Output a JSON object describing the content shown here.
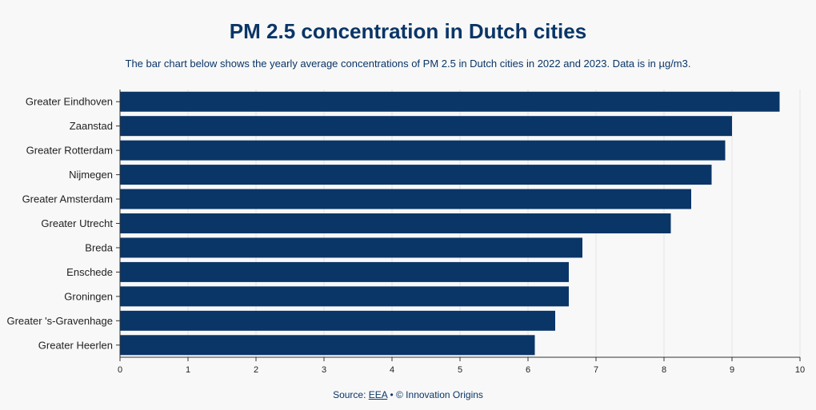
{
  "title": "PM 2.5 concentration in Dutch cities",
  "subtitle": "The bar chart below shows the yearly average concentrations of PM 2.5 in Dutch cities in 2022 and 2023. Data is in µg/m3.",
  "footer": {
    "prefix": "Source: ",
    "link_text": "EEA",
    "suffix": " • © Innovation Origins"
  },
  "chart_data": {
    "type": "bar",
    "orientation": "horizontal",
    "categories": [
      "Greater Eindhoven",
      "Zaanstad",
      "Greater Rotterdam",
      "Nijmegen",
      "Greater Amsterdam",
      "Greater Utrecht",
      "Breda",
      "Enschede",
      "Groningen",
      "Greater 's-Gravenhage",
      "Greater Heerlen"
    ],
    "values": [
      9.7,
      9.0,
      8.9,
      8.7,
      8.4,
      8.1,
      6.8,
      6.6,
      6.6,
      6.4,
      6.1
    ],
    "xlim": [
      0,
      10
    ],
    "xticks": [
      "0",
      "1",
      "2",
      "3",
      "4",
      "5",
      "6",
      "7",
      "8",
      "9",
      "10"
    ],
    "bar_color": "#0a3567",
    "grid": true
  }
}
